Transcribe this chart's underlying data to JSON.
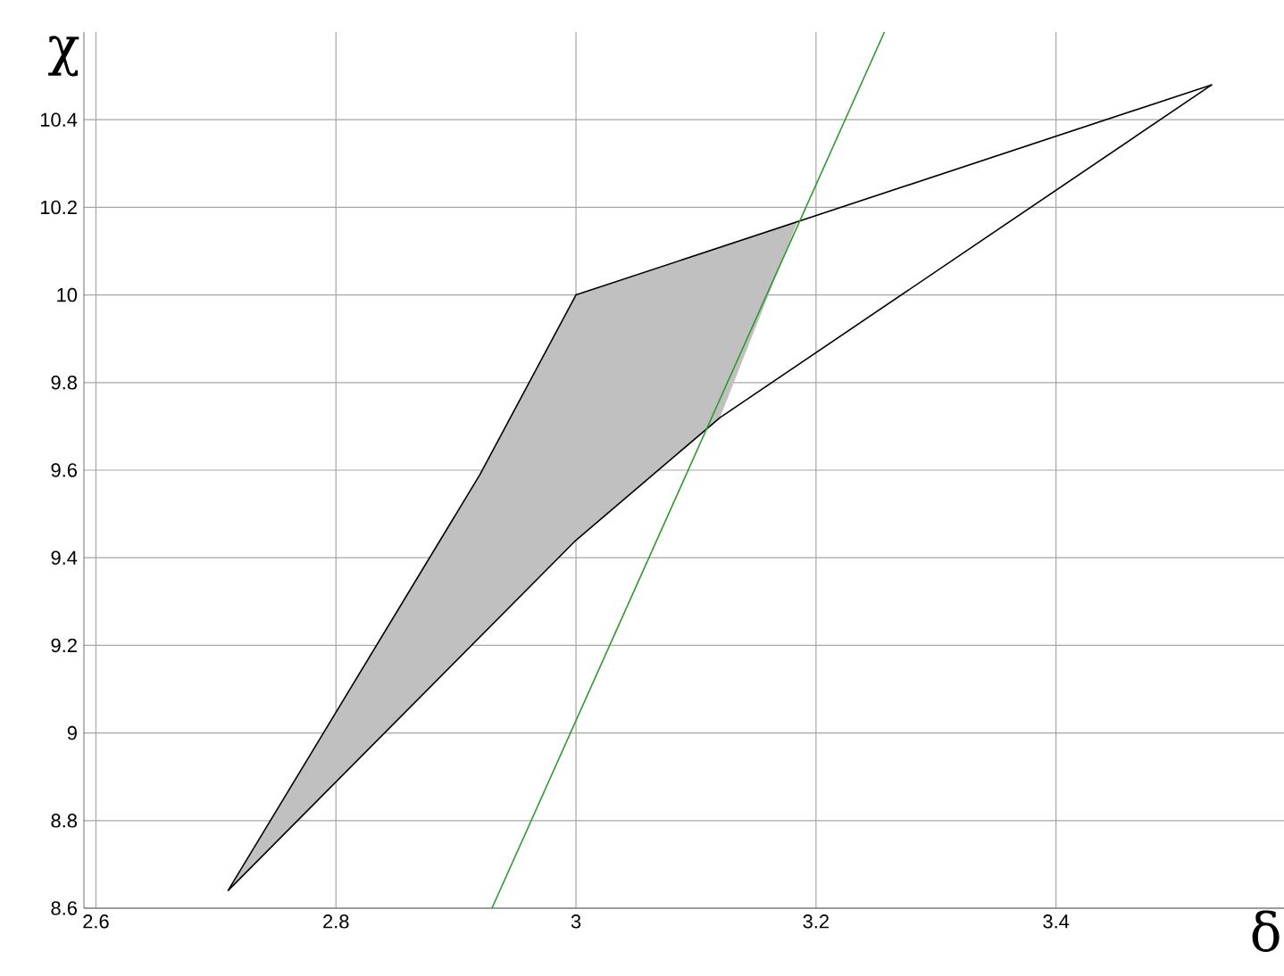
{
  "chart_data": {
    "type": "line",
    "xlabel": "δ",
    "ylabel": "χ",
    "xlim": [
      2.59,
      3.59
    ],
    "ylim": [
      8.6,
      10.6
    ],
    "xticks": [
      2.6,
      2.8,
      3,
      3.2,
      3.4
    ],
    "yticks": [
      8.6,
      8.8,
      9,
      9.2,
      9.4,
      9.6,
      9.8,
      10,
      10.2,
      10.4
    ],
    "grid": true,
    "marker": "none",
    "line_style": "solid",
    "series": [
      {
        "type": "area",
        "color": "#c0c0c0",
        "x": [
          2.71,
          2.92,
          3.0,
          3.185,
          3.12,
          3.0,
          2.71
        ],
        "values": [
          8.64,
          9.59,
          10.0,
          10.17,
          9.72,
          9.44,
          8.64
        ]
      },
      {
        "color": "#000000",
        "x": [
          2.71,
          2.92,
          3.0,
          3.53
        ],
        "values": [
          8.64,
          9.59,
          10.0,
          10.48
        ]
      },
      {
        "color": "#000000",
        "x": [
          2.71,
          3.0,
          3.12,
          3.53
        ],
        "values": [
          8.64,
          9.44,
          9.72,
          10.48
        ]
      },
      {
        "color": "#2e9a2e",
        "x": [
          2.93,
          3.257
        ],
        "values": [
          8.6,
          10.6
        ]
      }
    ]
  }
}
